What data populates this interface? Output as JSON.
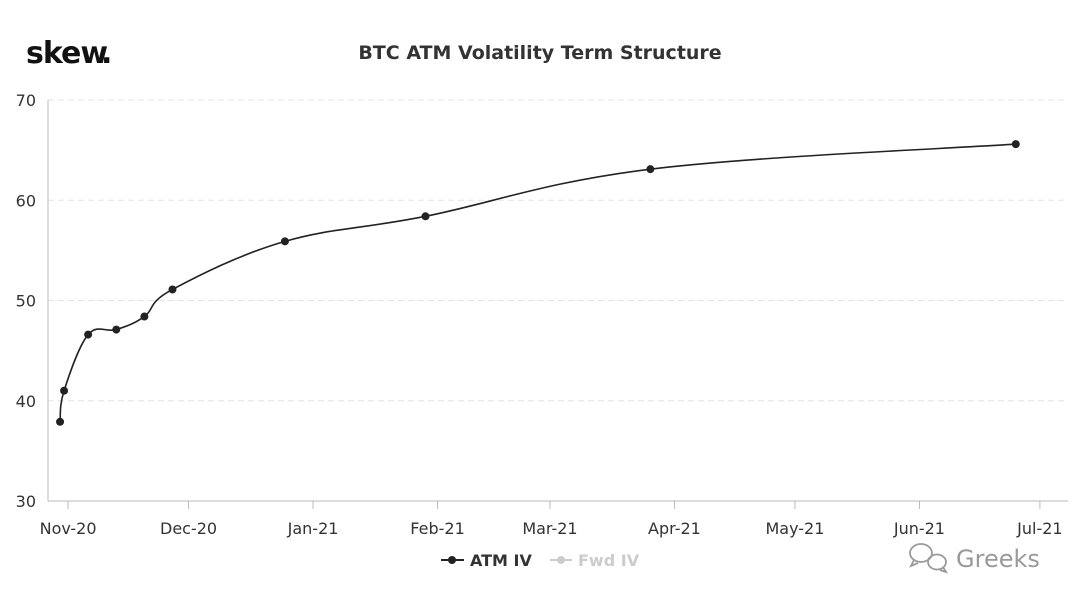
{
  "logo": {
    "text": "skew",
    "dot": ".",
    "dot_color": "#e8b830"
  },
  "watermark": {
    "icon": "wechat-icon",
    "text": "Greeks"
  },
  "chart_data": {
    "type": "line",
    "title": "BTC ATM Volatility Term Structure",
    "xlabel": "",
    "ylabel": "",
    "x_axis": {
      "type": "date",
      "range": [
        "2020-10-27",
        "2021-07-08"
      ],
      "ticks": [
        {
          "date": "2020-11-01",
          "label": "Nov-20"
        },
        {
          "date": "2020-12-01",
          "label": "Dec-20"
        },
        {
          "date": "2021-01-01",
          "label": "Jan-21"
        },
        {
          "date": "2021-02-01",
          "label": "Feb-21"
        },
        {
          "date": "2021-03-01",
          "label": "Mar-21"
        },
        {
          "date": "2021-04-01",
          "label": "Apr-21"
        },
        {
          "date": "2021-05-01",
          "label": "May-21"
        },
        {
          "date": "2021-06-01",
          "label": "Jun-21"
        },
        {
          "date": "2021-07-01",
          "label": "Jul-21"
        }
      ]
    },
    "y_axis": {
      "range": [
        30,
        70
      ],
      "ticks": [
        30,
        40,
        50,
        60,
        70
      ]
    },
    "grid": {
      "horizontal": true,
      "vertical": false
    },
    "legend": {
      "position": "bottom-center"
    },
    "series": [
      {
        "name": "ATM IV",
        "color": "#222222",
        "visible": true,
        "points": [
          {
            "date": "2020-10-30",
            "value": 37.9
          },
          {
            "date": "2020-10-31",
            "value": 41.0
          },
          {
            "date": "2020-11-06",
            "value": 46.6
          },
          {
            "date": "2020-11-13",
            "value": 47.1
          },
          {
            "date": "2020-11-20",
            "value": 48.4
          },
          {
            "date": "2020-11-27",
            "value": 51.1
          },
          {
            "date": "2020-12-25",
            "value": 55.9
          },
          {
            "date": "2021-01-29",
            "value": 58.4
          },
          {
            "date": "2021-03-26",
            "value": 63.1
          },
          {
            "date": "2021-06-25",
            "value": 65.6
          }
        ]
      },
      {
        "name": "Fwd IV",
        "color": "#cccccc",
        "visible": false,
        "points": []
      }
    ]
  }
}
